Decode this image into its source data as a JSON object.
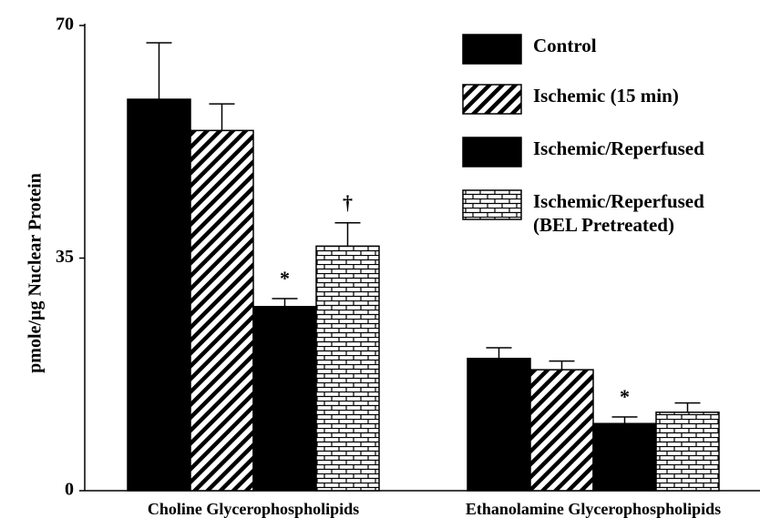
{
  "chart_data": {
    "type": "bar",
    "ylabel": "pmole/µg Nuclear Protein",
    "categories": [
      "Choline Glycerophospholipids",
      "Ethanolamine Glycerophospholipids"
    ],
    "series": [
      {
        "name": "Control",
        "color": "#000000",
        "pattern": "solid",
        "values": [
          58.9,
          19.9
        ],
        "errors": [
          8.5,
          1.6
        ]
      },
      {
        "name": "Ischemic (15 min)",
        "color": "#000000",
        "pattern": "diagonal",
        "values": [
          54.2,
          18.2
        ],
        "errors": [
          4.0,
          1.3
        ]
      },
      {
        "name": "Ischemic/Reperfused",
        "color": "#000000",
        "pattern": "solid",
        "values": [
          27.7,
          10.1
        ],
        "errors": [
          1.2,
          1.0
        ],
        "annotations": [
          "*",
          "*"
        ]
      },
      {
        "name": "Ischemic/Reperfused (BEL Pretreated)",
        "color": "#000000",
        "pattern": "brick",
        "values": [
          36.8,
          11.8
        ],
        "errors": [
          3.5,
          1.4
        ],
        "annotations": [
          "†",
          null
        ]
      }
    ],
    "ylim": [
      0,
      70
    ],
    "yticks": [
      0,
      35,
      70
    ]
  }
}
